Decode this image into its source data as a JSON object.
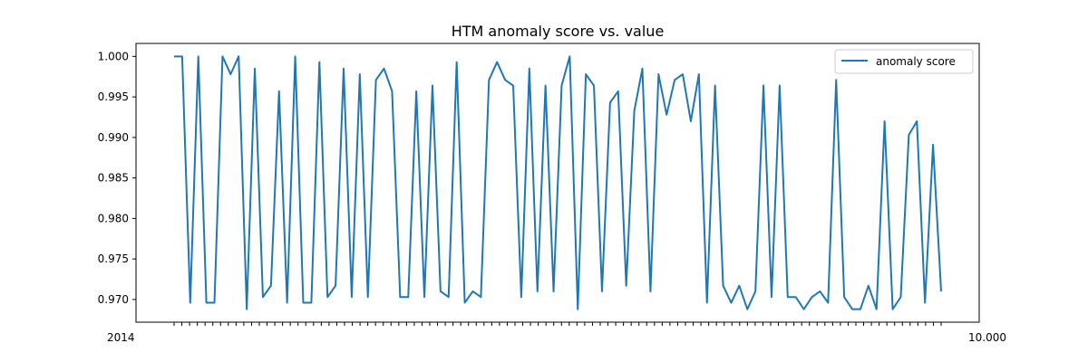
{
  "chart_data": {
    "type": "line",
    "title": "HTM anomaly score vs. value",
    "xlabel": "",
    "ylabel": "",
    "ylim": [
      0.9672,
      1.0016
    ],
    "yticks": [
      0.97,
      0.975,
      0.98,
      0.985,
      0.99,
      0.995,
      1.0
    ],
    "ytick_labels": [
      "0.970",
      "0.975",
      "0.980",
      "0.985",
      "0.990",
      "0.995",
      "1.000"
    ],
    "xtick_labels_left": "2014",
    "xtick_labels_right": "10.000",
    "xtick_count": 100,
    "legend": {
      "position": "top-right",
      "entries": [
        "anomaly score"
      ]
    },
    "grid": false,
    "color": "#1f77b4",
    "series": [
      {
        "name": "anomaly score",
        "values": [
          1.0,
          1.0,
          0.9696,
          1.0,
          0.9696,
          0.9696,
          1.0,
          0.9978,
          1.0,
          0.9688,
          0.9985,
          0.9703,
          0.9717,
          0.9957,
          0.9696,
          1.0,
          0.9696,
          0.9696,
          0.9993,
          0.9703,
          0.9717,
          0.9985,
          0.9703,
          0.9978,
          0.9703,
          0.9971,
          0.9985,
          0.9957,
          0.9703,
          0.9703,
          0.9957,
          0.9703,
          0.9964,
          0.971,
          0.9703,
          0.9993,
          0.9696,
          0.971,
          0.9703,
          0.9971,
          0.9993,
          0.9971,
          0.9964,
          0.9703,
          0.9985,
          0.971,
          0.9964,
          0.971,
          0.9964,
          1.0,
          0.9688,
          0.9978,
          0.9964,
          0.971,
          0.9943,
          0.9957,
          0.9717,
          0.9933,
          0.9985,
          0.971,
          0.9978,
          0.9928,
          0.9971,
          0.9978,
          0.992,
          0.9978,
          0.9696,
          0.9964,
          0.9717,
          0.9696,
          0.9717,
          0.9688,
          0.971,
          0.9964,
          0.9703,
          0.9964,
          0.9703,
          0.9703,
          0.9688,
          0.9703,
          0.971,
          0.9696,
          0.9971,
          0.9703,
          0.9688,
          0.9688,
          0.9717,
          0.9688,
          0.992,
          0.9688,
          0.9703,
          0.9903,
          0.992,
          0.9696,
          0.9891,
          0.971
        ]
      }
    ]
  }
}
